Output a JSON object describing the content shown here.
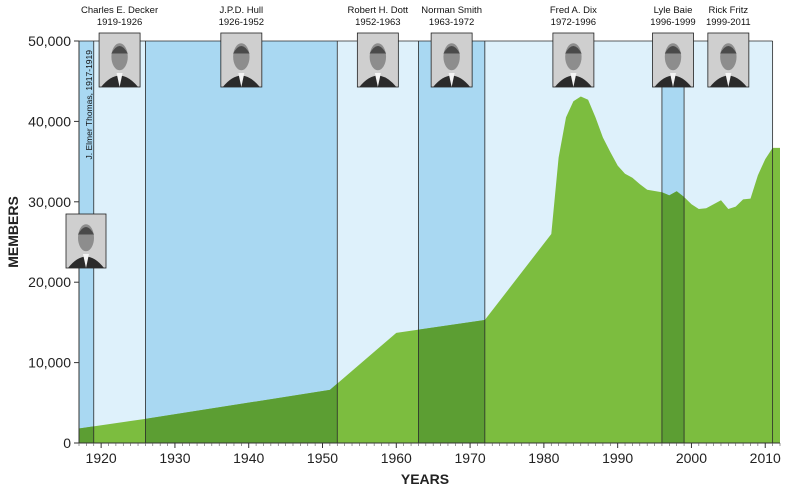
{
  "chart_data": {
    "type": "area",
    "xlabel": "YEARS",
    "ylabel": "MEMBERS",
    "xlim": [
      1917,
      2012
    ],
    "ylim": [
      0,
      50000
    ],
    "x_ticks": [
      1920,
      1930,
      1940,
      1950,
      1960,
      1970,
      1980,
      1990,
      2000,
      2010
    ],
    "y_ticks": [
      0,
      10000,
      20000,
      30000,
      40000,
      50000
    ],
    "y_tick_labels": [
      "0",
      "10,000",
      "20,000",
      "30,000",
      "40,000",
      "50,000"
    ],
    "grid": false,
    "colors": {
      "area": "#7cbd3f",
      "area_dark": "#5c9e33",
      "band_light": "#def1fb",
      "band_dark": "#a9d8f2",
      "band_border": "#2a2a2a"
    },
    "series": [
      {
        "values": [
          [
            1917,
            1800
          ],
          [
            1926,
            3000
          ],
          [
            1951,
            6600
          ],
          [
            1960,
            13700
          ],
          [
            1972,
            15300
          ],
          [
            1981,
            26000
          ],
          [
            1982,
            35500
          ],
          [
            1983,
            40500
          ],
          [
            1984,
            42500
          ],
          [
            1985,
            43100
          ],
          [
            1986,
            42700
          ],
          [
            1987,
            40500
          ],
          [
            1988,
            38000
          ],
          [
            1989,
            36200
          ],
          [
            1990,
            34500
          ],
          [
            1991,
            33500
          ],
          [
            1992,
            33000
          ],
          [
            1993,
            32200
          ],
          [
            1994,
            31500
          ],
          [
            1996,
            31200
          ],
          [
            1997,
            30800
          ],
          [
            1998,
            31300
          ],
          [
            1999,
            30600
          ],
          [
            2000,
            29700
          ],
          [
            2001,
            29100
          ],
          [
            2002,
            29200
          ],
          [
            2003,
            29700
          ],
          [
            2004,
            30200
          ],
          [
            2005,
            29100
          ],
          [
            2006,
            29400
          ],
          [
            2007,
            30300
          ],
          [
            2008,
            30400
          ],
          [
            2009,
            33300
          ],
          [
            2010,
            35300
          ],
          [
            2011,
            36700
          ]
        ]
      }
    ],
    "bands": [
      {
        "start": 1917,
        "end": 1919,
        "shade": "dark"
      },
      {
        "start": 1919,
        "end": 1926,
        "shade": "light"
      },
      {
        "start": 1926,
        "end": 1952,
        "shade": "dark"
      },
      {
        "start": 1952,
        "end": 1963,
        "shade": "light"
      },
      {
        "start": 1963,
        "end": 1972,
        "shade": "dark"
      },
      {
        "start": 1972,
        "end": 1996,
        "shade": "light"
      },
      {
        "start": 1996,
        "end": 1999,
        "shade": "dark"
      },
      {
        "start": 1999,
        "end": 2011,
        "shade": "light"
      }
    ],
    "leaders": [
      {
        "id": "thomas",
        "name": "J. Elmer Thomas, 1917-1919",
        "years": "",
        "label_style": "vertical",
        "photo": "portrait-photo"
      },
      {
        "id": "decker",
        "name": "Charles E. Decker",
        "years": "1919-1926",
        "label_style": "top",
        "photo": "portrait-photo"
      },
      {
        "id": "hull",
        "name": "J.P.D. Hull",
        "years": "1926-1952",
        "label_style": "top",
        "photo": "portrait-photo"
      },
      {
        "id": "dott",
        "name": "Robert H. Dott",
        "years": "1952-1963",
        "label_style": "top",
        "photo": "portrait-photo"
      },
      {
        "id": "smith",
        "name": "Norman Smith",
        "years": "1963-1972",
        "label_style": "top",
        "photo": "portrait-photo"
      },
      {
        "id": "dix",
        "name": "Fred A. Dix",
        "years": "1972-1996",
        "label_style": "top",
        "photo": "portrait-photo"
      },
      {
        "id": "baie",
        "name": "Lyle Baie",
        "years": "1996-1999",
        "label_style": "top",
        "photo": "portrait-photo"
      },
      {
        "id": "fritz",
        "name": "Rick Fritz",
        "years": "1999-2011",
        "label_style": "top",
        "photo": "portrait-photo"
      }
    ]
  }
}
